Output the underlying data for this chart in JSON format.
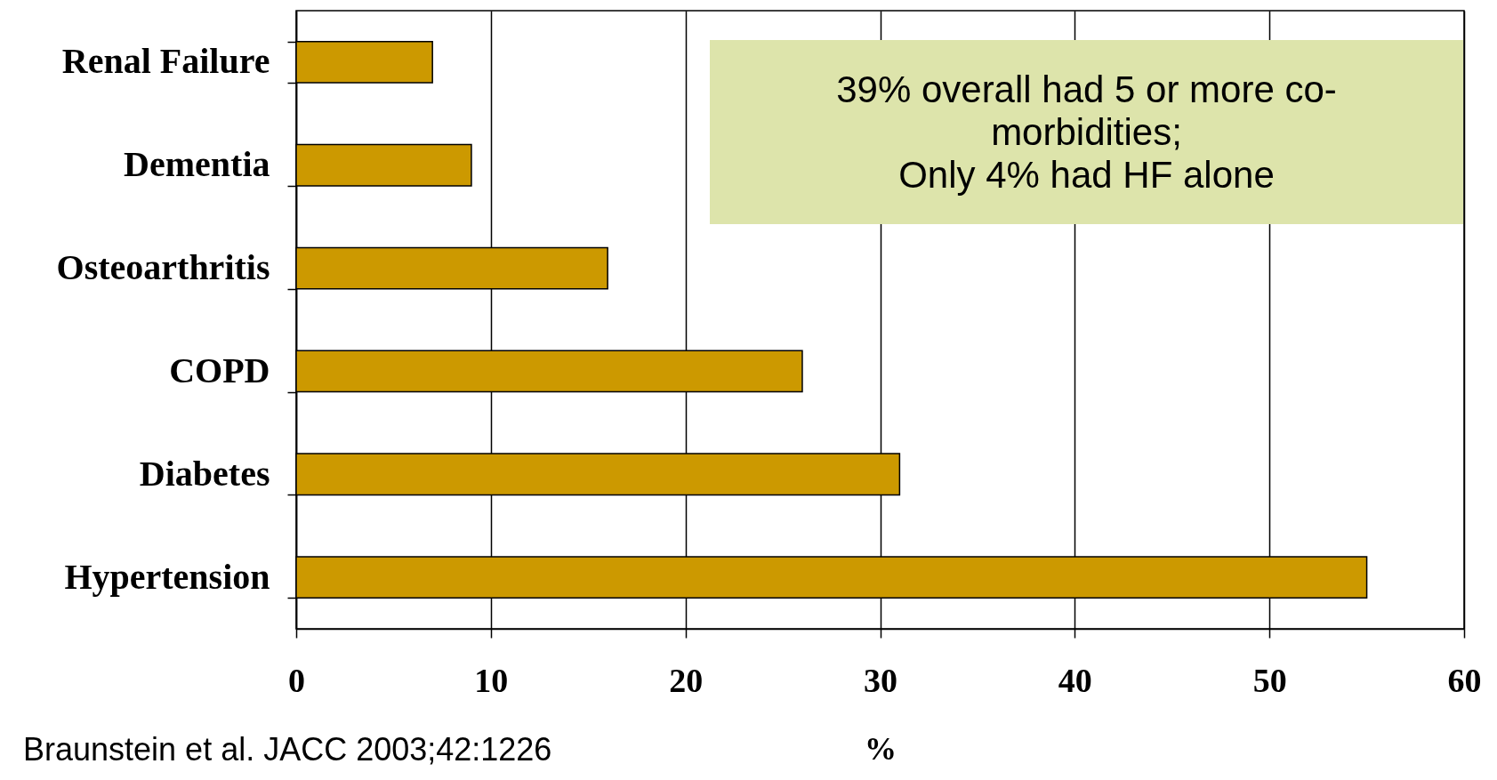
{
  "chart_data": {
    "type": "bar",
    "orientation": "horizontal",
    "xlabel": "%",
    "categories": [
      "Renal Failure",
      "Dementia",
      "Osteoarthritis",
      "COPD",
      "Diabetes",
      "Hypertension"
    ],
    "values": [
      7,
      9,
      16,
      26,
      31,
      55
    ],
    "color": "#cc9900",
    "xlim": [
      0,
      60
    ],
    "xticks": [
      0,
      10,
      20,
      30,
      40,
      50,
      60
    ],
    "grid": "x",
    "annotations": [
      "39% overall had 5 or more co-morbidities;",
      "Only 4% had HF alone",
      "Braunstein et al. JACC 2003;42:1226"
    ]
  }
}
